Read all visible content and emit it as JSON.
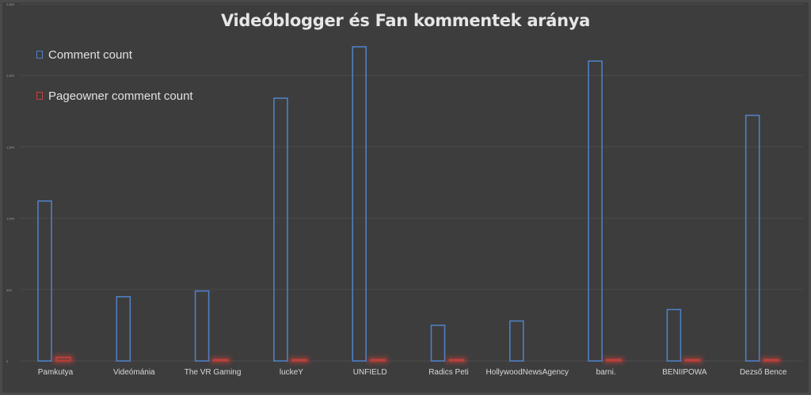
{
  "colors": {
    "comment_count": "#4f7fc4",
    "pageowner_comment_count": "#c8403a",
    "gridline": "#4b4b4b",
    "axis_text": "#d8d8d8",
    "tick_text": "#a0a0a0"
  },
  "chart_data": {
    "type": "bar",
    "title": "Videóblogger és Fan kommentek aránya",
    "categories": [
      "Pamkutya",
      "Videómánia",
      "The VR Gaming",
      "luckeY",
      "UNFIELD",
      "Radics Peti",
      "HollywoodNewsAgency",
      "barni.",
      "BENIIPOWA",
      "Dezső Bence"
    ],
    "series": [
      {
        "name": "Comment count",
        "values": [
          1120,
          450,
          490,
          1840,
          2200,
          250,
          280,
          2100,
          360,
          1720
        ]
      },
      {
        "name": "Pageowner comment count",
        "values": [
          25,
          0,
          10,
          10,
          10,
          10,
          0,
          10,
          10,
          10
        ]
      }
    ],
    "yticks": [
      "0",
      "500",
      "1,000",
      "1,500",
      "2,000",
      "2,500"
    ],
    "ylim": [
      0,
      2500
    ],
    "grid": true,
    "legend_position": "top-left",
    "xlabel": "",
    "ylabel": ""
  }
}
